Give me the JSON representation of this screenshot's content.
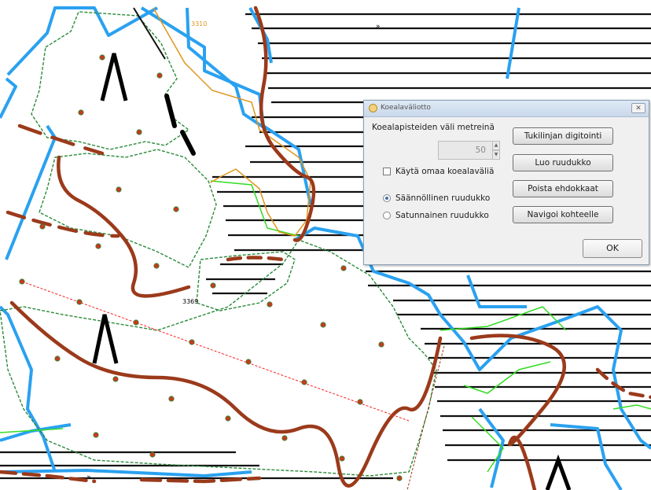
{
  "map": {
    "labels": [
      "3310",
      "3369"
    ],
    "colors": {
      "stand_boundary": "#2aa1f0",
      "ditch": "#9b3a1b",
      "sample_point": "#c83a1e",
      "point_outline": "#2a8a3a",
      "hatch": "#111111",
      "green_line": "#33dd22",
      "orange_line": "#e0961e",
      "transect": "#ff2020"
    }
  },
  "dialog": {
    "title": "Koealaväliotto",
    "close_label": "✕",
    "spacing_label": "Koealapisteiden väli metreinä",
    "spacing_value": "50",
    "custom_spacing_label": "Käytä omaa koealaväliä",
    "custom_spacing_checked": false,
    "regular_grid_label": "Säännöllinen ruudukko",
    "random_grid_label": "Satunnainen ruudukko",
    "buttons": {
      "digitize": "Tukilinjan digitointi",
      "create_grid": "Luo ruudukko",
      "remove": "Poista ehdokkaat",
      "navigate": "Navigoi kohteelle"
    },
    "ok": "OK"
  }
}
